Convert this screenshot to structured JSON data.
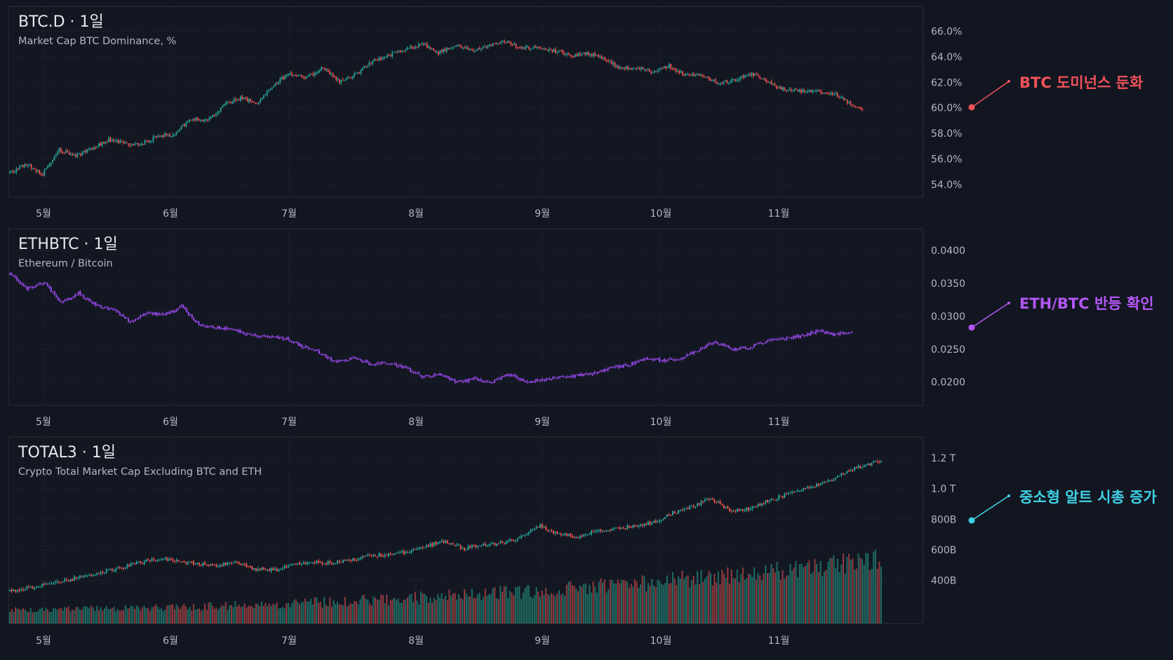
{
  "colors": {
    "up": "#26a69a",
    "down": "#ef5350",
    "ethbtc": "#a64dff",
    "annot_btc": "#f0525a",
    "annot_eth": "#b356f5",
    "annot_total3": "#3fd0e6",
    "volume_up": "#1f6b63",
    "volume_down": "#8e3a3f"
  },
  "x_months": [
    "5월",
    "6월",
    "7월",
    "8월",
    "9월",
    "10월",
    "11월"
  ],
  "chart_data": [
    {
      "type": "candlestick",
      "symbol": "BTC.D",
      "interval": "1일",
      "title": "BTC.D · 1일",
      "subtitle": "Market Cap BTC Dominance, %",
      "y_ticks": [
        "66.0%",
        "64.0%",
        "62.0%",
        "60.0%",
        "58.0%",
        "56.0%",
        "54.0%"
      ],
      "y_tick_values": [
        66,
        64,
        62,
        60,
        58,
        56,
        54
      ],
      "ylim": [
        53.5,
        66.8
      ],
      "x_ticks": [
        "5월",
        "6월",
        "7월",
        "8월",
        "9월",
        "10월",
        "11월"
      ],
      "grid": true,
      "series": [
        {
          "name": "BTC.D",
          "close_path": [
            [
              0,
              54.9
            ],
            [
              10,
              55.6
            ],
            [
              20,
              54.8
            ],
            [
              30,
              56.7
            ],
            [
              40,
              56.2
            ],
            [
              50,
              56.8
            ],
            [
              60,
              57.5
            ],
            [
              70,
              57.2
            ],
            [
              80,
              57.2
            ],
            [
              90,
              57.8
            ],
            [
              100,
              57.9
            ],
            [
              110,
              59.2
            ],
            [
              120,
              59.0
            ],
            [
              130,
              60.2
            ],
            [
              140,
              60.8
            ],
            [
              150,
              60.3
            ],
            [
              160,
              61.8
            ],
            [
              170,
              62.7
            ],
            [
              180,
              62.4
            ],
            [
              190,
              63.1
            ],
            [
              200,
              62.1
            ],
            [
              210,
              62.6
            ],
            [
              220,
              63.7
            ],
            [
              230,
              64.1
            ],
            [
              240,
              64.6
            ],
            [
              250,
              65.0
            ],
            [
              260,
              64.3
            ],
            [
              270,
              64.9
            ],
            [
              280,
              64.5
            ],
            [
              290,
              64.9
            ],
            [
              300,
              65.2
            ],
            [
              310,
              64.7
            ],
            [
              320,
              64.7
            ],
            [
              330,
              64.5
            ],
            [
              340,
              64.1
            ],
            [
              350,
              64.3
            ],
            [
              360,
              63.9
            ],
            [
              370,
              63.1
            ],
            [
              380,
              63.2
            ],
            [
              390,
              62.8
            ],
            [
              400,
              63.3
            ],
            [
              410,
              62.5
            ],
            [
              420,
              62.6
            ],
            [
              430,
              61.9
            ],
            [
              440,
              62.2
            ],
            [
              450,
              62.7
            ],
            [
              460,
              62.0
            ],
            [
              470,
              61.4
            ],
            [
              480,
              61.3
            ],
            [
              490,
              61.3
            ],
            [
              500,
              61.1
            ],
            [
              510,
              60.3
            ],
            [
              517,
              59.8
            ]
          ]
        }
      ]
    },
    {
      "type": "candlestick",
      "symbol": "ETHBTC",
      "interval": "1일",
      "title": "ETHBTC · 1일",
      "subtitle": "Ethereum / Bitcoin",
      "y_ticks": [
        "0.0400",
        "0.0350",
        "0.0300",
        "0.0250",
        "0.0200"
      ],
      "y_tick_values": [
        0.04,
        0.035,
        0.03,
        0.025,
        0.02
      ],
      "ylim": [
        0.0173,
        0.0412
      ],
      "x_ticks": [
        "5월",
        "6월",
        "7월",
        "8월",
        "9월",
        "10월",
        "11월"
      ],
      "grid": true,
      "series": [
        {
          "name": "ETHBTC",
          "close_path": [
            [
              0,
              0.0365
            ],
            [
              10,
              0.0342
            ],
            [
              20,
              0.0352
            ],
            [
              30,
              0.032
            ],
            [
              40,
              0.0335
            ],
            [
              50,
              0.0317
            ],
            [
              60,
              0.031
            ],
            [
              70,
              0.0291
            ],
            [
              80,
              0.0305
            ],
            [
              90,
              0.0302
            ],
            [
              100,
              0.0315
            ],
            [
              110,
              0.0287
            ],
            [
              120,
              0.0283
            ],
            [
              130,
              0.028
            ],
            [
              140,
              0.0272
            ],
            [
              150,
              0.0268
            ],
            [
              160,
              0.0267
            ],
            [
              170,
              0.0255
            ],
            [
              180,
              0.0245
            ],
            [
              190,
              0.023
            ],
            [
              200,
              0.0237
            ],
            [
              210,
              0.0227
            ],
            [
              220,
              0.0229
            ],
            [
              230,
              0.0222
            ],
            [
              240,
              0.0207
            ],
            [
              250,
              0.0212
            ],
            [
              260,
              0.02
            ],
            [
              270,
              0.0205
            ],
            [
              280,
              0.0199
            ],
            [
              290,
              0.0211
            ],
            [
              300,
              0.0201
            ],
            [
              310,
              0.0203
            ],
            [
              320,
              0.0207
            ],
            [
              330,
              0.021
            ],
            [
              340,
              0.0213
            ],
            [
              350,
              0.0222
            ],
            [
              360,
              0.0226
            ],
            [
              370,
              0.0236
            ],
            [
              380,
              0.0233
            ],
            [
              390,
              0.0236
            ],
            [
              400,
              0.0247
            ],
            [
              410,
              0.0262
            ],
            [
              420,
              0.025
            ],
            [
              430,
              0.0252
            ],
            [
              440,
              0.0262
            ],
            [
              450,
              0.0266
            ],
            [
              460,
              0.027
            ],
            [
              470,
              0.0278
            ],
            [
              480,
              0.0272
            ],
            [
              490,
              0.0275
            ]
          ]
        }
      ]
    },
    {
      "type": "candlestick",
      "symbol": "TOTAL3",
      "interval": "1일",
      "title": "TOTAL3 · 1일",
      "subtitle": "Crypto Total Market Cap Excluding BTC and ETH",
      "y_ticks": [
        "1.2 T",
        "1.0 T",
        "800B",
        "600B",
        "400B"
      ],
      "y_tick_values": [
        1200,
        1000,
        800,
        600,
        400
      ],
      "y_unit": "B",
      "ylim": [
        205,
        1260
      ],
      "x_ticks": [
        "5월",
        "6월",
        "7월",
        "8월",
        "9월",
        "10월",
        "11월"
      ],
      "grid": true,
      "volume": true,
      "series": [
        {
          "name": "TOTAL3",
          "close_path": [
            [
              0,
              330
            ],
            [
              10,
              350
            ],
            [
              20,
              380
            ],
            [
              30,
              400
            ],
            [
              40,
              430
            ],
            [
              50,
              460
            ],
            [
              60,
              490
            ],
            [
              70,
              520
            ],
            [
              80,
              545
            ],
            [
              90,
              520
            ],
            [
              100,
              505
            ],
            [
              110,
              500
            ],
            [
              120,
              520
            ],
            [
              130,
              470
            ],
            [
              140,
              470
            ],
            [
              150,
              500
            ],
            [
              160,
              520
            ],
            [
              170,
              515
            ],
            [
              180,
              530
            ],
            [
              190,
              565
            ],
            [
              200,
              570
            ],
            [
              210,
              590
            ],
            [
              220,
              625
            ],
            [
              230,
              655
            ],
            [
              240,
              610
            ],
            [
              250,
              630
            ],
            [
              260,
              645
            ],
            [
              270,
              680
            ],
            [
              280,
              760
            ],
            [
              290,
              700
            ],
            [
              300,
              685
            ],
            [
              310,
              730
            ],
            [
              320,
              735
            ],
            [
              330,
              760
            ],
            [
              340,
              780
            ],
            [
              350,
              840
            ],
            [
              360,
              880
            ],
            [
              370,
              940
            ],
            [
              380,
              860
            ],
            [
              390,
              870
            ],
            [
              400,
              920
            ],
            [
              410,
              960
            ],
            [
              420,
              1000
            ],
            [
              430,
              1040
            ],
            [
              440,
              1100
            ],
            [
              450,
              1150
            ],
            [
              460,
              1180
            ]
          ]
        }
      ]
    }
  ],
  "annotations": [
    {
      "text": "BTC 도미넌스 둔화",
      "color_key": "annot_btc"
    },
    {
      "text": "ETH/BTC 반등 확인",
      "color_key": "annot_eth"
    },
    {
      "text": "중소형 알트 시총 증가",
      "color_key": "annot_total3"
    }
  ]
}
